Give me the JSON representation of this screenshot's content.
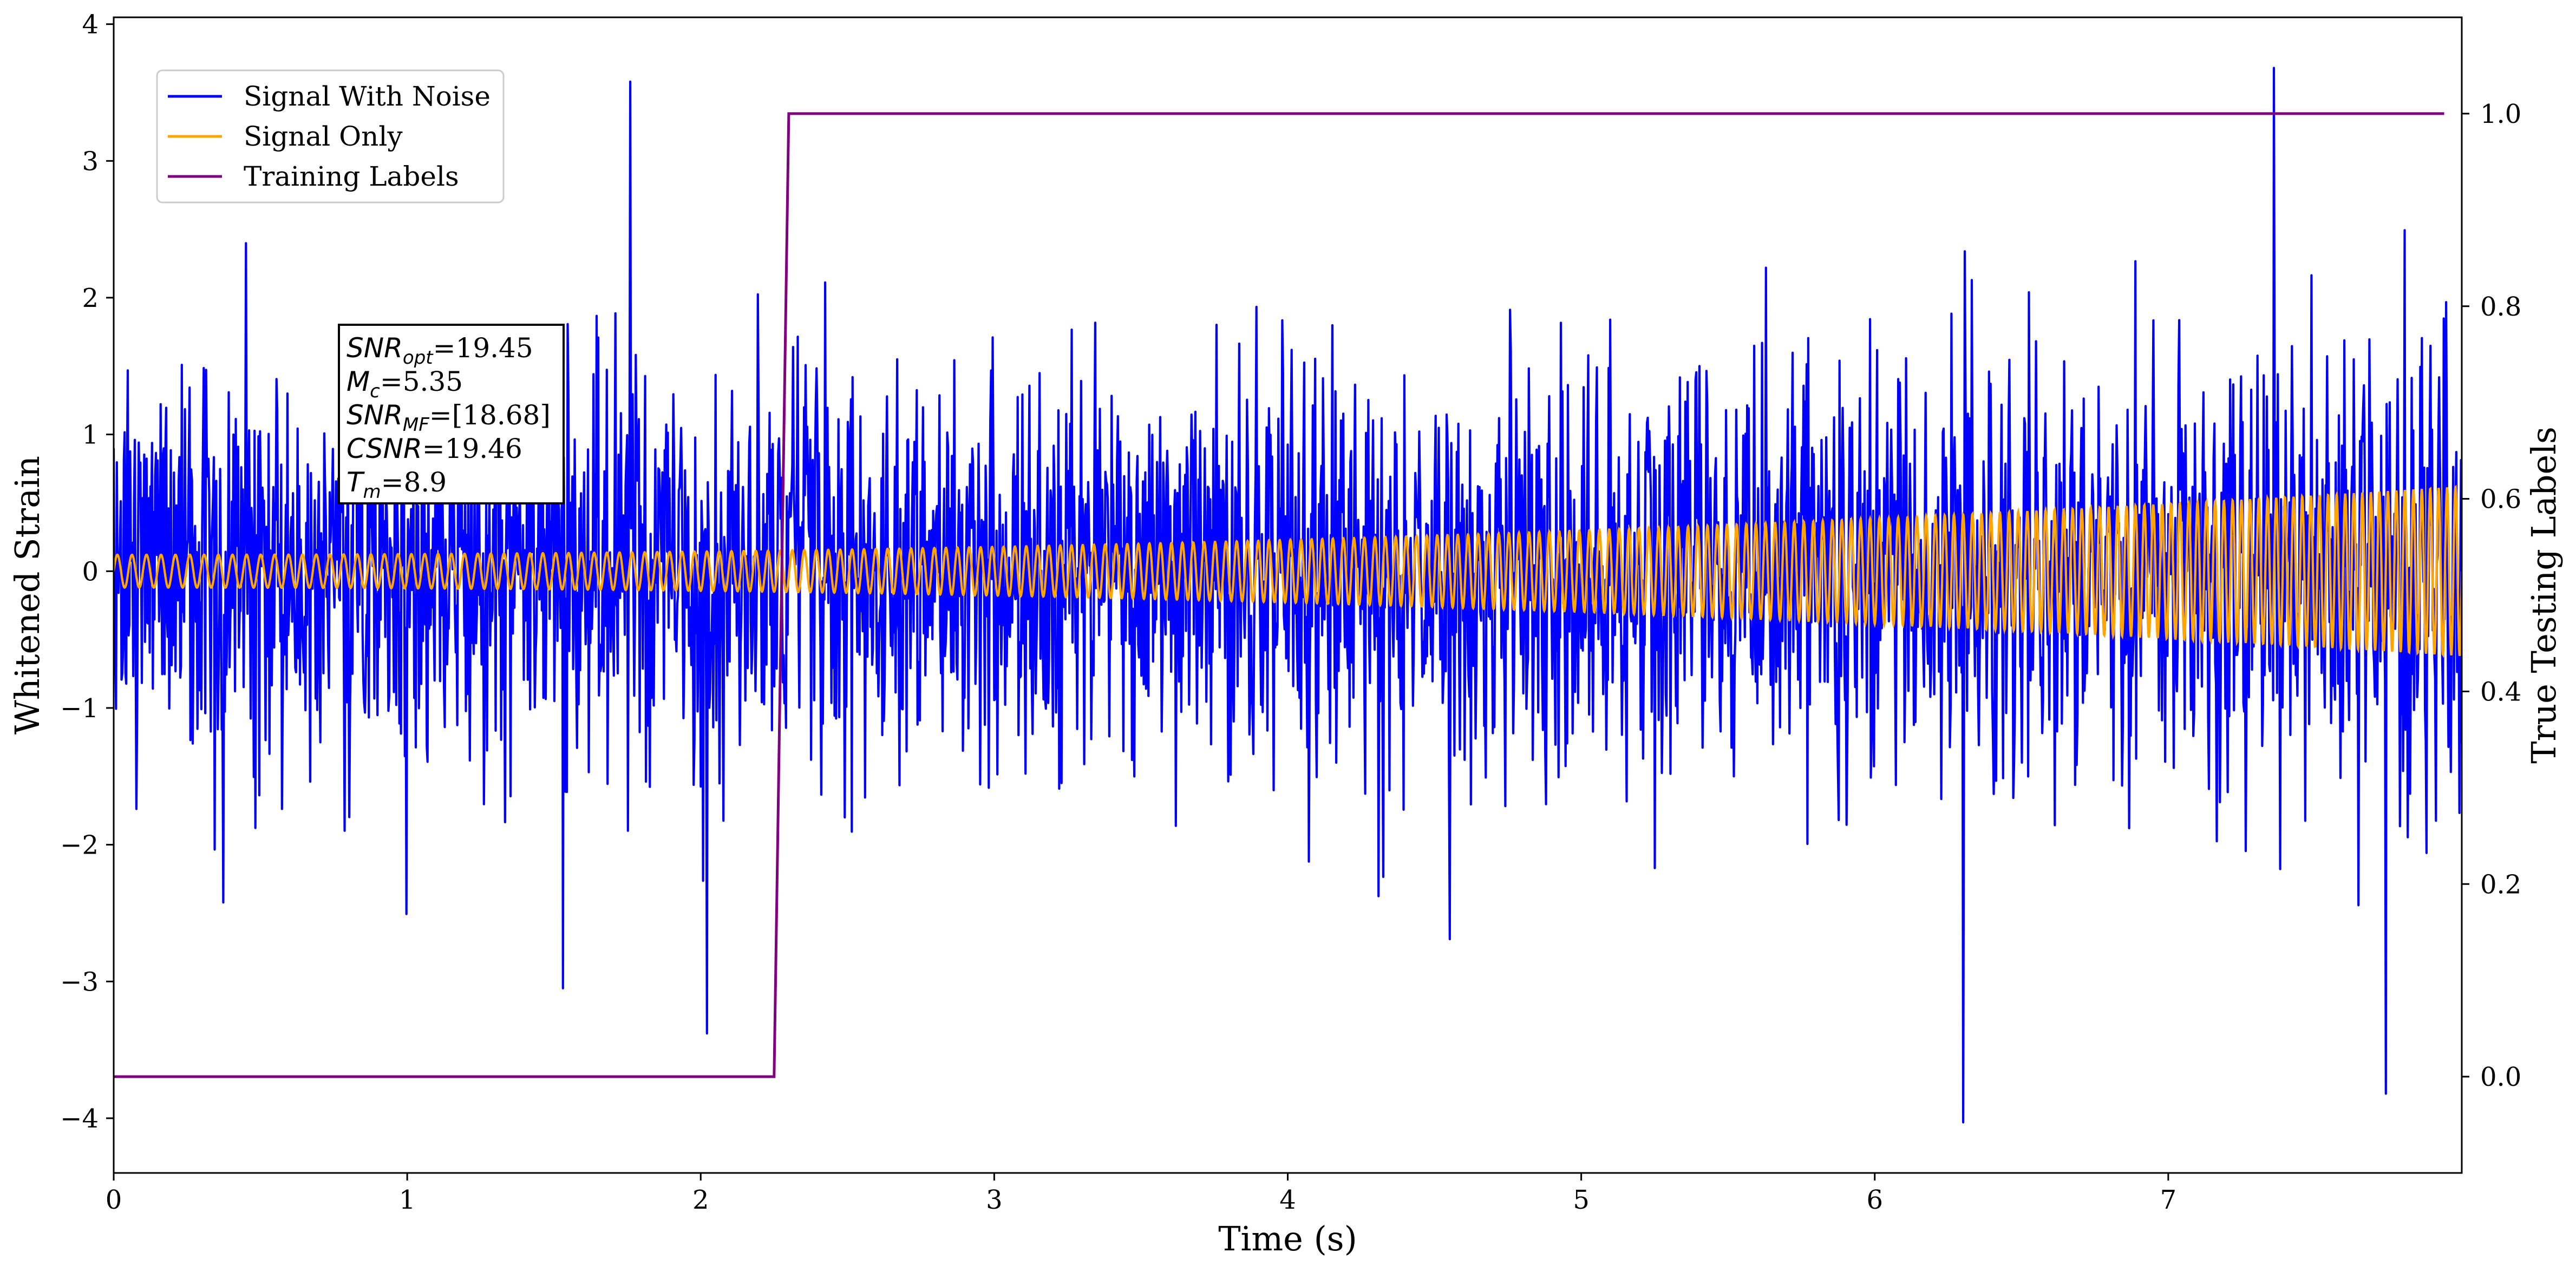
{
  "chart_data": {
    "type": "line",
    "xlabel": "Time (s)",
    "ylabel": "Whitened Strain",
    "y2label": "True Testing Labels",
    "xlim": [
      0,
      8
    ],
    "ylim": [
      -4.4,
      4.05
    ],
    "y2lim": [
      -0.1,
      1.1
    ],
    "x_ticks": [
      0,
      1,
      2,
      3,
      4,
      5,
      6,
      7
    ],
    "x_tick_labels": [
      "0",
      "1",
      "2",
      "3",
      "4",
      "5",
      "6",
      "7"
    ],
    "y_ticks": [
      -4,
      -3,
      -2,
      -1,
      0,
      1,
      2,
      3,
      4
    ],
    "y_tick_labels": [
      "−4",
      "−3",
      "−2",
      "−1",
      "0",
      "1",
      "2",
      "3",
      "4"
    ],
    "y2_ticks": [
      0.0,
      0.2,
      0.4,
      0.6,
      0.8,
      1.0
    ],
    "y2_tick_labels": [
      "0.0",
      "0.2",
      "0.4",
      "0.6",
      "0.8",
      "1.0"
    ],
    "grid": false,
    "legend_position": "top-left",
    "series": [
      {
        "name": "Signal With Noise",
        "axis": "left",
        "color": "#0000ff",
        "description_values": {
          "x_range": [
            0,
            8
          ],
          "typical_range": [
            -1.6,
            1.8
          ],
          "notable_peaks": [
            {
              "x": 1.76,
              "y": 3.58
            },
            {
              "x": 7.36,
              "y": 3.68
            },
            {
              "x": 6.3,
              "y": -4.03
            },
            {
              "x": 7.74,
              "y": -3.82
            },
            {
              "x": 2.02,
              "y": -3.38
            },
            {
              "x": 1.53,
              "y": -3.05
            }
          ]
        }
      },
      {
        "name": "Signal Only",
        "axis": "left",
        "color": "#ffa500",
        "description_values": {
          "amplitude_start": 0.12,
          "amplitude_end": 0.62,
          "cycles_start_per_s": 20,
          "cycles_end_per_s": 35
        }
      },
      {
        "name": "Training Labels",
        "axis": "right",
        "color": "#800080",
        "x": [
          0,
          2.25,
          2.3,
          7.94
        ],
        "y": [
          0,
          0,
          1,
          1
        ]
      }
    ],
    "annotation": {
      "lines": [
        {
          "sym": "SNR",
          "sub": "opt",
          "value": "=19.45"
        },
        {
          "sym": "M",
          "sub": "c",
          "value": "=5.35"
        },
        {
          "sym": "SNR",
          "sub": "MF",
          "value": "=[18.68]"
        },
        {
          "sym": "CSNR",
          "sub": "",
          "value": "=19.46"
        },
        {
          "sym": "T",
          "sub": "m",
          "value": "=8.9"
        }
      ]
    }
  }
}
